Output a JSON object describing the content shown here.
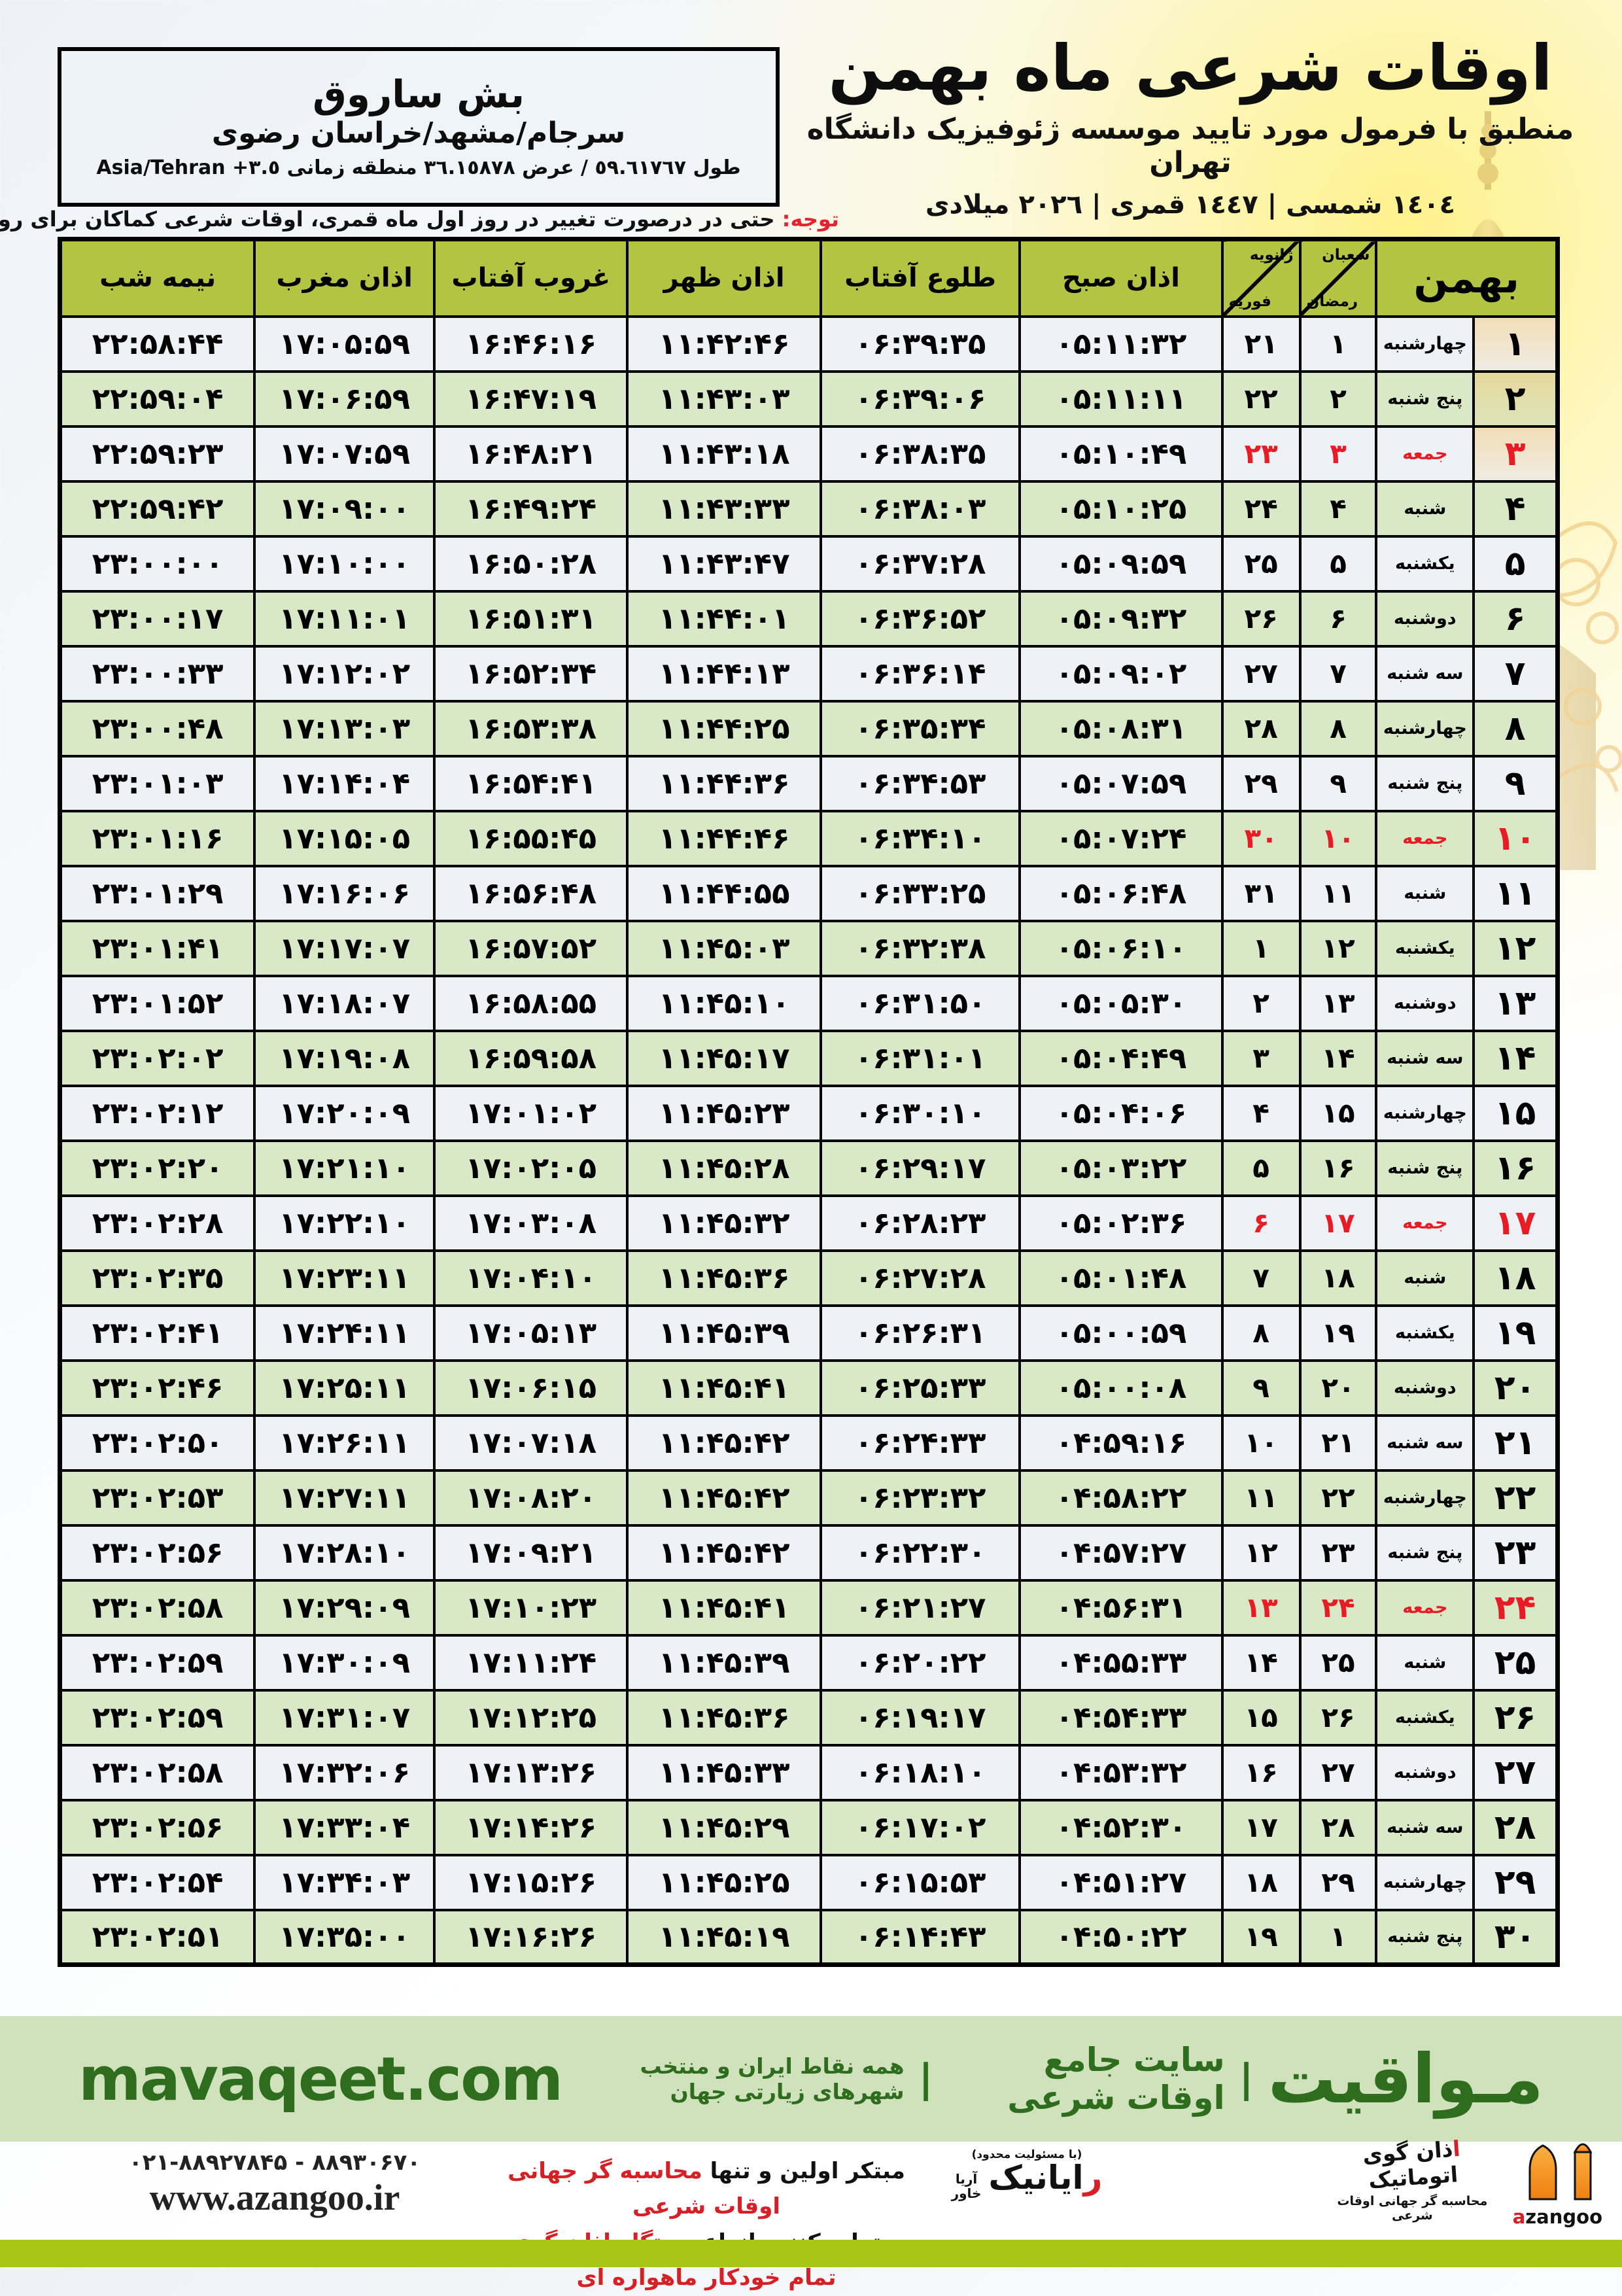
{
  "colors": {
    "header_olive": "#b2c441",
    "row_green": "#d9e8c6",
    "row_light": "#eef1f5",
    "friday_red": "#e81c24",
    "notice_red": "#e8212e",
    "brand_green": "#2e6d1e",
    "band_green": "#cfe2bb",
    "bottom_bar_green": "#a8c414",
    "logo_orange": "#f7941d"
  },
  "header": {
    "title": "اوقات شرعی ماه بهمن",
    "subtitle": "منطبق با فرمول مورد تایید موسسه ژئوفیزیک دانشگاه تهران",
    "year_line": "١٤٠٤ شمسی | ١٤٤٧ قمری | ٢٠٢٦ میلادی"
  },
  "location": {
    "name": "بش ساروق",
    "region": "سرجام/مشهد/خراسان رضوی",
    "coords": "طول ٥٩.٦١٧٦٧ / عرض ٣٦.١٥٨٧٨ منطقه زمانی ٣.٥+ Asia/Tehran"
  },
  "notice": {
    "label": "توجه:",
    "text": " حتی در درصورت تغییر در روز اول ماه قمری، اوقات شرعی کماکان برای روزهای شمسی و میلادی معتبر است."
  },
  "table": {
    "headers": {
      "month": "بهمن",
      "lunar_top": "شعبان",
      "lunar_bottom": "رمضان",
      "greg_top": "ژانویه",
      "greg_bottom": "فوریه",
      "fajr": "اذان صبح",
      "sunrise": "طلوع آفتاب",
      "dhuhr": "اذان ظهر",
      "sunset": "غروب آفتاب",
      "maghrib": "اذان مغرب",
      "midnight": "نیمه شب"
    },
    "rows": [
      {
        "day": "۱",
        "weekday": "چهارشنبه",
        "lunar": "۱",
        "greg": "۲۱",
        "fajr": "۰۵:۱۱:۳۲",
        "sunrise": "۰۶:۳۹:۳۵",
        "dhuhr": "۱۱:۴۲:۴۶",
        "sunset": "۱۶:۴۶:۱۶",
        "maghrib": "۱۷:۰۵:۵۹",
        "midnight": "۲۲:۵۸:۴۴",
        "friday": false
      },
      {
        "day": "۲",
        "weekday": "پنج شنبه",
        "lunar": "۲",
        "greg": "۲۲",
        "fajr": "۰۵:۱۱:۱۱",
        "sunrise": "۰۶:۳۹:۰۶",
        "dhuhr": "۱۱:۴۳:۰۳",
        "sunset": "۱۶:۴۷:۱۹",
        "maghrib": "۱۷:۰۶:۵۹",
        "midnight": "۲۲:۵۹:۰۴",
        "friday": false
      },
      {
        "day": "۳",
        "weekday": "جمعه",
        "lunar": "۳",
        "greg": "۲۳",
        "fajr": "۰۵:۱۰:۴۹",
        "sunrise": "۰۶:۳۸:۳۵",
        "dhuhr": "۱۱:۴۳:۱۸",
        "sunset": "۱۶:۴۸:۲۱",
        "maghrib": "۱۷:۰۷:۵۹",
        "midnight": "۲۲:۵۹:۲۳",
        "friday": true
      },
      {
        "day": "۴",
        "weekday": "شنبه",
        "lunar": "۴",
        "greg": "۲۴",
        "fajr": "۰۵:۱۰:۲۵",
        "sunrise": "۰۶:۳۸:۰۳",
        "dhuhr": "۱۱:۴۳:۳۳",
        "sunset": "۱۶:۴۹:۲۴",
        "maghrib": "۱۷:۰۹:۰۰",
        "midnight": "۲۲:۵۹:۴۲",
        "friday": false
      },
      {
        "day": "۵",
        "weekday": "یکشنبه",
        "lunar": "۵",
        "greg": "۲۵",
        "fajr": "۰۵:۰۹:۵۹",
        "sunrise": "۰۶:۳۷:۲۸",
        "dhuhr": "۱۱:۴۳:۴۷",
        "sunset": "۱۶:۵۰:۲۸",
        "maghrib": "۱۷:۱۰:۰۰",
        "midnight": "۲۳:۰۰:۰۰",
        "friday": false
      },
      {
        "day": "۶",
        "weekday": "دوشنبه",
        "lunar": "۶",
        "greg": "۲۶",
        "fajr": "۰۵:۰۹:۳۲",
        "sunrise": "۰۶:۳۶:۵۲",
        "dhuhr": "۱۱:۴۴:۰۱",
        "sunset": "۱۶:۵۱:۳۱",
        "maghrib": "۱۷:۱۱:۰۱",
        "midnight": "۲۳:۰۰:۱۷",
        "friday": false
      },
      {
        "day": "۷",
        "weekday": "سه شنبه",
        "lunar": "۷",
        "greg": "۲۷",
        "fajr": "۰۵:۰۹:۰۲",
        "sunrise": "۰۶:۳۶:۱۴",
        "dhuhr": "۱۱:۴۴:۱۳",
        "sunset": "۱۶:۵۲:۳۴",
        "maghrib": "۱۷:۱۲:۰۲",
        "midnight": "۲۳:۰۰:۳۳",
        "friday": false
      },
      {
        "day": "۸",
        "weekday": "چهارشنبه",
        "lunar": "۸",
        "greg": "۲۸",
        "fajr": "۰۵:۰۸:۳۱",
        "sunrise": "۰۶:۳۵:۳۴",
        "dhuhr": "۱۱:۴۴:۲۵",
        "sunset": "۱۶:۵۳:۳۸",
        "maghrib": "۱۷:۱۳:۰۳",
        "midnight": "۲۳:۰۰:۴۸",
        "friday": false
      },
      {
        "day": "۹",
        "weekday": "پنج شنبه",
        "lunar": "۹",
        "greg": "۲۹",
        "fajr": "۰۵:۰۷:۵۹",
        "sunrise": "۰۶:۳۴:۵۳",
        "dhuhr": "۱۱:۴۴:۳۶",
        "sunset": "۱۶:۵۴:۴۱",
        "maghrib": "۱۷:۱۴:۰۴",
        "midnight": "۲۳:۰۱:۰۳",
        "friday": false
      },
      {
        "day": "۱۰",
        "weekday": "جمعه",
        "lunar": "۱۰",
        "greg": "۳۰",
        "fajr": "۰۵:۰۷:۲۴",
        "sunrise": "۰۶:۳۴:۱۰",
        "dhuhr": "۱۱:۴۴:۴۶",
        "sunset": "۱۶:۵۵:۴۵",
        "maghrib": "۱۷:۱۵:۰۵",
        "midnight": "۲۳:۰۱:۱۶",
        "friday": true
      },
      {
        "day": "۱۱",
        "weekday": "شنبه",
        "lunar": "۱۱",
        "greg": "۳۱",
        "fajr": "۰۵:۰۶:۴۸",
        "sunrise": "۰۶:۳۳:۲۵",
        "dhuhr": "۱۱:۴۴:۵۵",
        "sunset": "۱۶:۵۶:۴۸",
        "maghrib": "۱۷:۱۶:۰۶",
        "midnight": "۲۳:۰۱:۲۹",
        "friday": false
      },
      {
        "day": "۱۲",
        "weekday": "یکشنبه",
        "lunar": "۱۲",
        "greg": "۱",
        "fajr": "۰۵:۰۶:۱۰",
        "sunrise": "۰۶:۳۲:۳۸",
        "dhuhr": "۱۱:۴۵:۰۳",
        "sunset": "۱۶:۵۷:۵۲",
        "maghrib": "۱۷:۱۷:۰۷",
        "midnight": "۲۳:۰۱:۴۱",
        "friday": false
      },
      {
        "day": "۱۳",
        "weekday": "دوشنبه",
        "lunar": "۱۳",
        "greg": "۲",
        "fajr": "۰۵:۰۵:۳۰",
        "sunrise": "۰۶:۳۱:۵۰",
        "dhuhr": "۱۱:۴۵:۱۰",
        "sunset": "۱۶:۵۸:۵۵",
        "maghrib": "۱۷:۱۸:۰۷",
        "midnight": "۲۳:۰۱:۵۲",
        "friday": false
      },
      {
        "day": "۱۴",
        "weekday": "سه شنبه",
        "lunar": "۱۴",
        "greg": "۳",
        "fajr": "۰۵:۰۴:۴۹",
        "sunrise": "۰۶:۳۱:۰۱",
        "dhuhr": "۱۱:۴۵:۱۷",
        "sunset": "۱۶:۵۹:۵۸",
        "maghrib": "۱۷:۱۹:۰۸",
        "midnight": "۲۳:۰۲:۰۲",
        "friday": false
      },
      {
        "day": "۱۵",
        "weekday": "چهارشنبه",
        "lunar": "۱۵",
        "greg": "۴",
        "fajr": "۰۵:۰۴:۰۶",
        "sunrise": "۰۶:۳۰:۱۰",
        "dhuhr": "۱۱:۴۵:۲۳",
        "sunset": "۱۷:۰۱:۰۲",
        "maghrib": "۱۷:۲۰:۰۹",
        "midnight": "۲۳:۰۲:۱۲",
        "friday": false
      },
      {
        "day": "۱۶",
        "weekday": "پنج شنبه",
        "lunar": "۱۶",
        "greg": "۵",
        "fajr": "۰۵:۰۳:۲۲",
        "sunrise": "۰۶:۲۹:۱۷",
        "dhuhr": "۱۱:۴۵:۲۸",
        "sunset": "۱۷:۰۲:۰۵",
        "maghrib": "۱۷:۲۱:۱۰",
        "midnight": "۲۳:۰۲:۲۰",
        "friday": false
      },
      {
        "day": "۱۷",
        "weekday": "جمعه",
        "lunar": "۱۷",
        "greg": "۶",
        "fajr": "۰۵:۰۲:۳۶",
        "sunrise": "۰۶:۲۸:۲۳",
        "dhuhr": "۱۱:۴۵:۳۲",
        "sunset": "۱۷:۰۳:۰۸",
        "maghrib": "۱۷:۲۲:۱۰",
        "midnight": "۲۳:۰۲:۲۸",
        "friday": true
      },
      {
        "day": "۱۸",
        "weekday": "شنبه",
        "lunar": "۱۸",
        "greg": "۷",
        "fajr": "۰۵:۰۱:۴۸",
        "sunrise": "۰۶:۲۷:۲۸",
        "dhuhr": "۱۱:۴۵:۳۶",
        "sunset": "۱۷:۰۴:۱۰",
        "maghrib": "۱۷:۲۳:۱۱",
        "midnight": "۲۳:۰۲:۳۵",
        "friday": false
      },
      {
        "day": "۱۹",
        "weekday": "یکشنبه",
        "lunar": "۱۹",
        "greg": "۸",
        "fajr": "۰۵:۰۰:۵۹",
        "sunrise": "۰۶:۲۶:۳۱",
        "dhuhr": "۱۱:۴۵:۳۹",
        "sunset": "۱۷:۰۵:۱۳",
        "maghrib": "۱۷:۲۴:۱۱",
        "midnight": "۲۳:۰۲:۴۱",
        "friday": false
      },
      {
        "day": "۲۰",
        "weekday": "دوشنبه",
        "lunar": "۲۰",
        "greg": "۹",
        "fajr": "۰۵:۰۰:۰۸",
        "sunrise": "۰۶:۲۵:۳۳",
        "dhuhr": "۱۱:۴۵:۴۱",
        "sunset": "۱۷:۰۶:۱۵",
        "maghrib": "۱۷:۲۵:۱۱",
        "midnight": "۲۳:۰۲:۴۶",
        "friday": false
      },
      {
        "day": "۲۱",
        "weekday": "سه شنبه",
        "lunar": "۲۱",
        "greg": "۱۰",
        "fajr": "۰۴:۵۹:۱۶",
        "sunrise": "۰۶:۲۴:۳۳",
        "dhuhr": "۱۱:۴۵:۴۲",
        "sunset": "۱۷:۰۷:۱۸",
        "maghrib": "۱۷:۲۶:۱۱",
        "midnight": "۲۳:۰۲:۵۰",
        "friday": false
      },
      {
        "day": "۲۲",
        "weekday": "چهارشنبه",
        "lunar": "۲۲",
        "greg": "۱۱",
        "fajr": "۰۴:۵۸:۲۲",
        "sunrise": "۰۶:۲۳:۳۲",
        "dhuhr": "۱۱:۴۵:۴۲",
        "sunset": "۱۷:۰۸:۲۰",
        "maghrib": "۱۷:۲۷:۱۱",
        "midnight": "۲۳:۰۲:۵۳",
        "friday": false
      },
      {
        "day": "۲۳",
        "weekday": "پنج شنبه",
        "lunar": "۲۳",
        "greg": "۱۲",
        "fajr": "۰۴:۵۷:۲۷",
        "sunrise": "۰۶:۲۲:۳۰",
        "dhuhr": "۱۱:۴۵:۴۲",
        "sunset": "۱۷:۰۹:۲۱",
        "maghrib": "۱۷:۲۸:۱۰",
        "midnight": "۲۳:۰۲:۵۶",
        "friday": false
      },
      {
        "day": "۲۴",
        "weekday": "جمعه",
        "lunar": "۲۴",
        "greg": "۱۳",
        "fajr": "۰۴:۵۶:۳۱",
        "sunrise": "۰۶:۲۱:۲۷",
        "dhuhr": "۱۱:۴۵:۴۱",
        "sunset": "۱۷:۱۰:۲۳",
        "maghrib": "۱۷:۲۹:۰۹",
        "midnight": "۲۳:۰۲:۵۸",
        "friday": true
      },
      {
        "day": "۲۵",
        "weekday": "شنبه",
        "lunar": "۲۵",
        "greg": "۱۴",
        "fajr": "۰۴:۵۵:۳۳",
        "sunrise": "۰۶:۲۰:۲۲",
        "dhuhr": "۱۱:۴۵:۳۹",
        "sunset": "۱۷:۱۱:۲۴",
        "maghrib": "۱۷:۳۰:۰۹",
        "midnight": "۲۳:۰۲:۵۹",
        "friday": false
      },
      {
        "day": "۲۶",
        "weekday": "یکشنبه",
        "lunar": "۲۶",
        "greg": "۱۵",
        "fajr": "۰۴:۵۴:۳۳",
        "sunrise": "۰۶:۱۹:۱۷",
        "dhuhr": "۱۱:۴۵:۳۶",
        "sunset": "۱۷:۱۲:۲۵",
        "maghrib": "۱۷:۳۱:۰۷",
        "midnight": "۲۳:۰۲:۵۹",
        "friday": false
      },
      {
        "day": "۲۷",
        "weekday": "دوشنبه",
        "lunar": "۲۷",
        "greg": "۱۶",
        "fajr": "۰۴:۵۳:۳۲",
        "sunrise": "۰۶:۱۸:۱۰",
        "dhuhr": "۱۱:۴۵:۳۳",
        "sunset": "۱۷:۱۳:۲۶",
        "maghrib": "۱۷:۳۲:۰۶",
        "midnight": "۲۳:۰۲:۵۸",
        "friday": false
      },
      {
        "day": "۲۸",
        "weekday": "سه شنبه",
        "lunar": "۲۸",
        "greg": "۱۷",
        "fajr": "۰۴:۵۲:۳۰",
        "sunrise": "۰۶:۱۷:۰۲",
        "dhuhr": "۱۱:۴۵:۲۹",
        "sunset": "۱۷:۱۴:۲۶",
        "maghrib": "۱۷:۳۳:۰۴",
        "midnight": "۲۳:۰۲:۵۶",
        "friday": false
      },
      {
        "day": "۲۹",
        "weekday": "چهارشنبه",
        "lunar": "۲۹",
        "greg": "۱۸",
        "fajr": "۰۴:۵۱:۲۷",
        "sunrise": "۰۶:۱۵:۵۳",
        "dhuhr": "۱۱:۴۵:۲۵",
        "sunset": "۱۷:۱۵:۲۶",
        "maghrib": "۱۷:۳۴:۰۳",
        "midnight": "۲۳:۰۲:۵۴",
        "friday": false
      },
      {
        "day": "۳۰",
        "weekday": "پنج شنبه",
        "lunar": "۱",
        "greg": "۱۹",
        "fajr": "۰۴:۵۰:۲۲",
        "sunrise": "۰۶:۱۴:۴۳",
        "dhuhr": "۱۱:۴۵:۱۹",
        "sunset": "۱۷:۱۶:۲۶",
        "maghrib": "۱۷:۳۵:۰۰",
        "midnight": "۲۳:۰۲:۵۱",
        "friday": false
      }
    ]
  },
  "band": {
    "brand": "مـواقیت",
    "sep1": "|",
    "desc1": "سایت جامع اوقات شرعی",
    "sep2": "|",
    "desc2": "همه نقاط ایران و منتخب شهرهای زیارتی جهان",
    "url": "mavaqeet.com"
  },
  "footer": {
    "phone": "۰۲۱-۸۸۹۲۷۸۴۵ - ۸۸۹۳۰۶۷۰",
    "website": "www.azangoo.ir",
    "line1_black": "مبتکر اولین و تنها ",
    "line1_red": "محاسبه گر جهانی اوقات شرعی",
    "line2_black": "و تولید کننده انواع ",
    "line2_red": "دستگاه اذان گوی تمام خودکار ماهواره ای",
    "rayanik_tiny": "(با مسئولیت محدود)",
    "rayanik_red": "ر",
    "rayanik_black": "ایانیک",
    "rayanik_sub1": "آریا",
    "rayanik_sub2": "خاور",
    "azangoo_fa_red": "ا",
    "azangoo_fa_black": "ذان گوی اتوماتیک",
    "azangoo_tagline": "محاسبه گر جهانی اوقات شرعی",
    "azangoo_en_red": "a",
    "azangoo_en_black": "zangoo"
  }
}
